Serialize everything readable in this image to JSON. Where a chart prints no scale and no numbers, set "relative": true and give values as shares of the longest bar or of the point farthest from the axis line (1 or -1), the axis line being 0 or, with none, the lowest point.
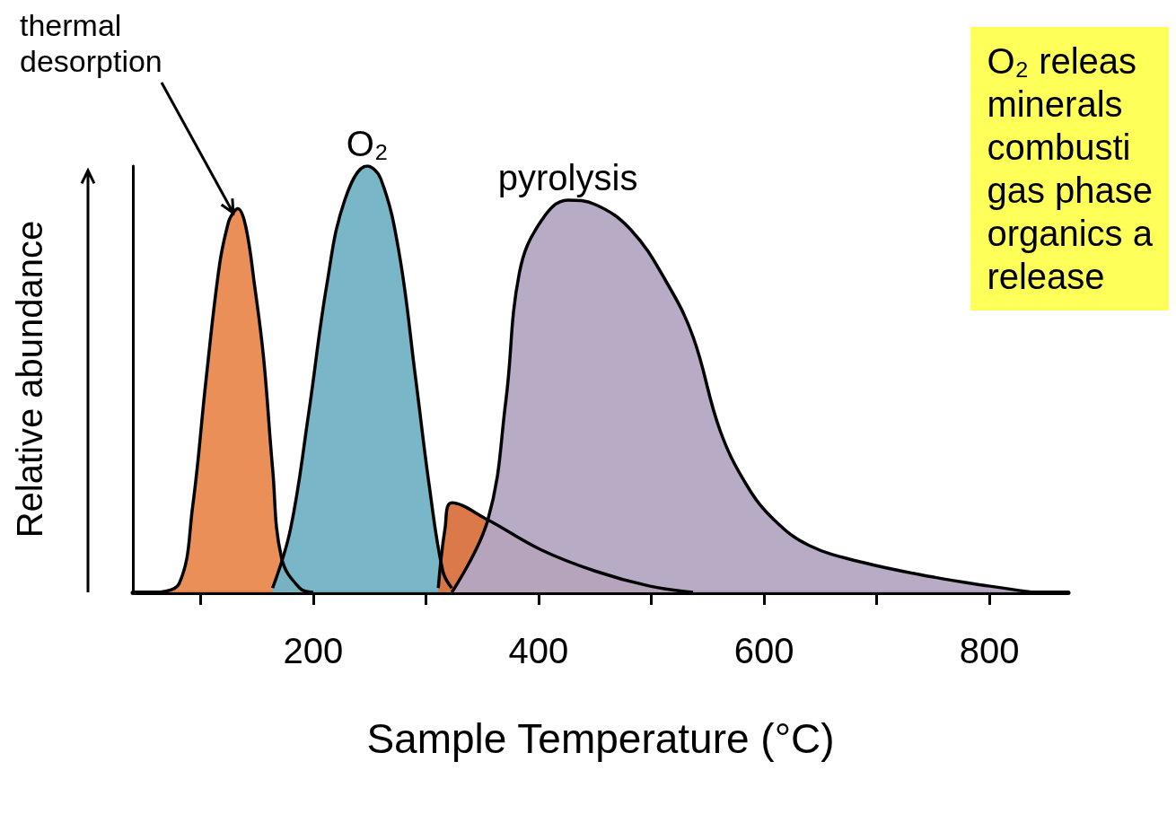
{
  "chart_data": {
    "type": "area",
    "relative": true,
    "xlabel": "Sample Temperature (°C)",
    "ylabel": "Relative abundance",
    "xlim": [
      40,
      870
    ],
    "xticks": [
      {
        "value": 100,
        "label": null
      },
      200,
      {
        "value": 300,
        "label": null
      },
      400,
      {
        "value": 500,
        "label": null
      },
      600,
      {
        "value": 700,
        "label": null
      },
      800
    ],
    "series": [
      {
        "color": "#e8894e",
        "x": [
          60,
          81,
          93,
          105,
          117,
          125,
          129,
          133,
          140,
          148,
          156,
          164,
          172,
          188,
          200
        ],
        "values": [
          0,
          0.02,
          0.2,
          0.5,
          0.77,
          0.87,
          0.89,
          0.9,
          0.86,
          0.72,
          0.55,
          0.29,
          0.08,
          0.01,
          0
        ]
      },
      {
        "name": "O₂",
        "color": "#72b3c5",
        "x": [
          164,
          180,
          196,
          212,
          228,
          248,
          260,
          276,
          291,
          303,
          315,
          323
        ],
        "values": [
          0.01,
          0.15,
          0.42,
          0.72,
          0.92,
          1,
          0.97,
          0.8,
          0.5,
          0.25,
          0.05,
          0.01
        ]
      },
      {
        "color": "#d9733e",
        "x": [
          311,
          317,
          323,
          355,
          402,
          450,
          498,
          537
        ],
        "values": [
          0.01,
          0.15,
          0.21,
          0.17,
          0.1,
          0.05,
          0.015,
          0
        ]
      },
      {
        "name": "pyrolysis",
        "color": "#b3a7c3",
        "x": [
          323,
          355,
          371,
          383,
          402,
          426,
          450,
          482,
          513,
          537,
          561,
          585,
          609,
          640,
          688,
          752,
          799,
          839
        ],
        "values": [
          0,
          0.17,
          0.45,
          0.75,
          0.87,
          0.92,
          0.91,
          0.85,
          0.73,
          0.6,
          0.38,
          0.25,
          0.17,
          0.11,
          0.07,
          0.035,
          0.015,
          0
        ]
      }
    ],
    "annotations": [
      {
        "text": "thermal desorption",
        "x": 129,
        "y": 0.89
      },
      "O₂ releas\nminerals\ncombusti\ngas phase\norganics a\nrelease"
    ]
  }
}
